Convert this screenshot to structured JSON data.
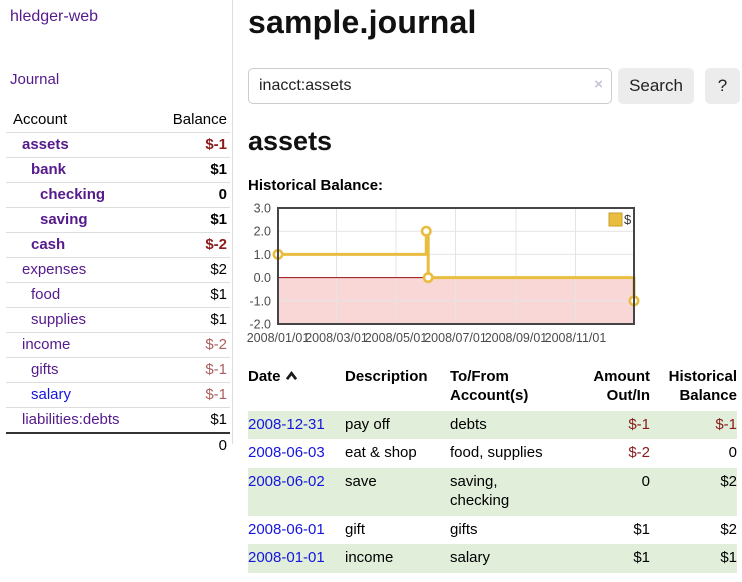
{
  "app": {
    "name": "hledger-web"
  },
  "sidebar": {
    "journal_link": "Journal",
    "accounts": {
      "headers": {
        "account": "Account",
        "balance": "Balance"
      },
      "rows": [
        {
          "name": "assets",
          "level": 1,
          "bold": true,
          "balance": "$-1",
          "balance_class": "neg-strong"
        },
        {
          "name": "bank",
          "level": 2,
          "bold": true,
          "balance": "$1",
          "balance_class": "pos"
        },
        {
          "name": "checking",
          "level": 3,
          "bold": true,
          "balance": "0",
          "balance_class": "pos"
        },
        {
          "name": "saving",
          "level": 3,
          "bold": true,
          "balance": "$1",
          "balance_class": "pos"
        },
        {
          "name": "cash",
          "level": 2,
          "bold": true,
          "balance": "$-2",
          "balance_class": "neg-strong"
        },
        {
          "name": "expenses",
          "level": 1,
          "bold": false,
          "balance": "$2",
          "balance_class": "pos"
        },
        {
          "name": "food",
          "level": 2,
          "bold": false,
          "balance": "$1",
          "balance_class": "pos"
        },
        {
          "name": "supplies",
          "level": 2,
          "bold": false,
          "balance": "$1",
          "balance_class": "pos"
        },
        {
          "name": "income",
          "level": 1,
          "bold": false,
          "balance": "$-2",
          "balance_class": "neg-soft"
        },
        {
          "name": "gifts",
          "level": 2,
          "bold": false,
          "balance": "$-1",
          "balance_class": "neg-soft"
        },
        {
          "name": "salary",
          "level": 2,
          "bold": false,
          "balance": "$-1",
          "balance_class": "neg-soft",
          "link": "blue"
        },
        {
          "name": "liabilities:debts",
          "level": 1,
          "bold": false,
          "balance": "$1",
          "balance_class": "pos"
        }
      ],
      "total": "0"
    }
  },
  "main": {
    "title": "sample.journal",
    "search": {
      "value": "inacct:assets",
      "clear": "×",
      "button": "Search",
      "help": "?"
    },
    "heading": "assets",
    "chart_label": "Historical Balance:",
    "register": {
      "headers": {
        "date": "Date",
        "description": "Description",
        "accounts": "To/From Account(s)",
        "amount": "Amount Out/In",
        "balance": "Historical Balance"
      },
      "rows": [
        {
          "date": "2008-12-31",
          "description": "pay off",
          "accounts": "debts",
          "amount": "$-1",
          "amount_class": "neg",
          "balance": "$-1",
          "balance_class": "neg",
          "stripe": true
        },
        {
          "date": "2008-06-03",
          "description": "eat & shop",
          "accounts": "food, supplies",
          "amount": "$-2",
          "amount_class": "neg",
          "balance": "0",
          "balance_class": "",
          "stripe": false
        },
        {
          "date": "2008-06-02",
          "description": "save",
          "accounts": "saving,\nchecking",
          "amount": "0",
          "amount_class": "",
          "balance": "$2",
          "balance_class": "",
          "stripe": true
        },
        {
          "date": "2008-06-01",
          "description": "gift",
          "accounts": "gifts",
          "amount": "$1",
          "amount_class": "",
          "balance": "$2",
          "balance_class": "",
          "stripe": false
        },
        {
          "date": "2008-01-01",
          "description": "income",
          "accounts": "salary",
          "amount": "$1",
          "amount_class": "",
          "balance": "$1",
          "balance_class": "",
          "stripe": true
        }
      ]
    }
  },
  "chart_data": {
    "type": "line",
    "step": true,
    "title": "Historical Balance:",
    "series": [
      {
        "name": "$",
        "color": "#e9bd3f",
        "points": [
          [
            "2008-01-01",
            1
          ],
          [
            "2008-06-01",
            2
          ],
          [
            "2008-06-03",
            0
          ],
          [
            "2008-12-31",
            -1
          ]
        ]
      }
    ],
    "x_range": [
      "2008-01-01",
      "2008-12-31"
    ],
    "x_ticks": [
      {
        "date": "2008-01-01",
        "label": "2008/01/01"
      },
      {
        "date": "2008-03-01",
        "label": "2008/03/01"
      },
      {
        "date": "2008-05-01",
        "label": "2008/05/01"
      },
      {
        "date": "2008-07-01",
        "label": "2008/07/01"
      },
      {
        "date": "2008-09-01",
        "label": "2008/09/01"
      },
      {
        "date": "2008-11-01",
        "label": "2008/11/01"
      }
    ],
    "y_ticks": [
      3,
      2,
      1,
      0,
      -1,
      -2
    ],
    "ylim": [
      -2,
      3
    ],
    "legend": {
      "label": "$",
      "position": "top-right"
    },
    "colors": {
      "grid": "#e4e4e4",
      "border": "#454545",
      "negative_fill": "#f9d7d7",
      "zero_line": "#9c0d0d",
      "axis_text": "#4b4b4b"
    }
  }
}
